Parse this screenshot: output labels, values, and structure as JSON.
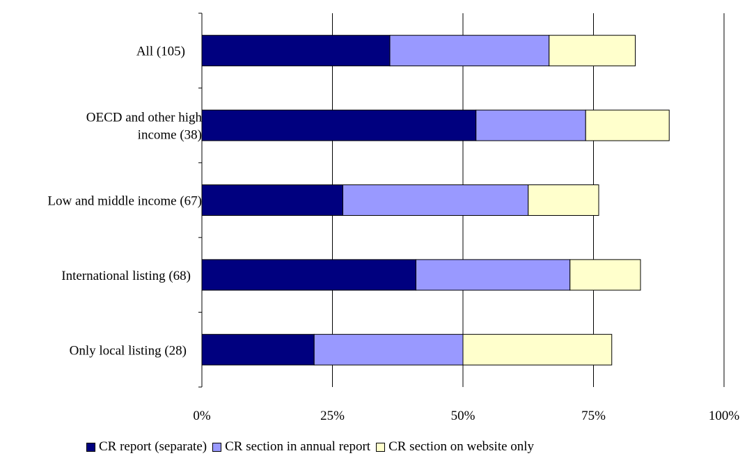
{
  "chart_data": {
    "type": "bar",
    "orientation": "horizontal",
    "stacked": true,
    "categories": [
      [
        "All (105)"
      ],
      [
        "OECD and other high",
        "income (38)"
      ],
      [
        "Low and middle income (67)"
      ],
      [
        "International listing (68)"
      ],
      [
        "Only local listing (28)"
      ]
    ],
    "series": [
      {
        "name": "CR report (separate)",
        "color": "#00007f",
        "values": [
          36,
          52.5,
          27,
          41,
          21.5
        ]
      },
      {
        "name": "CR section in annual report",
        "color": "#9999ff",
        "values": [
          30.5,
          21,
          35.5,
          29.5,
          28.5
        ]
      },
      {
        "name": "CR section on website only",
        "color": "#ffffcc",
        "values": [
          16.5,
          16,
          13.5,
          13.5,
          28.5
        ]
      }
    ],
    "x_ticks": [
      "0%",
      "25%",
      "50%",
      "75%",
      "100%"
    ],
    "xlim": [
      0,
      100
    ],
    "grid": "vertical",
    "legend_position": "bottom",
    "title": "",
    "xlabel": "",
    "ylabel": ""
  }
}
